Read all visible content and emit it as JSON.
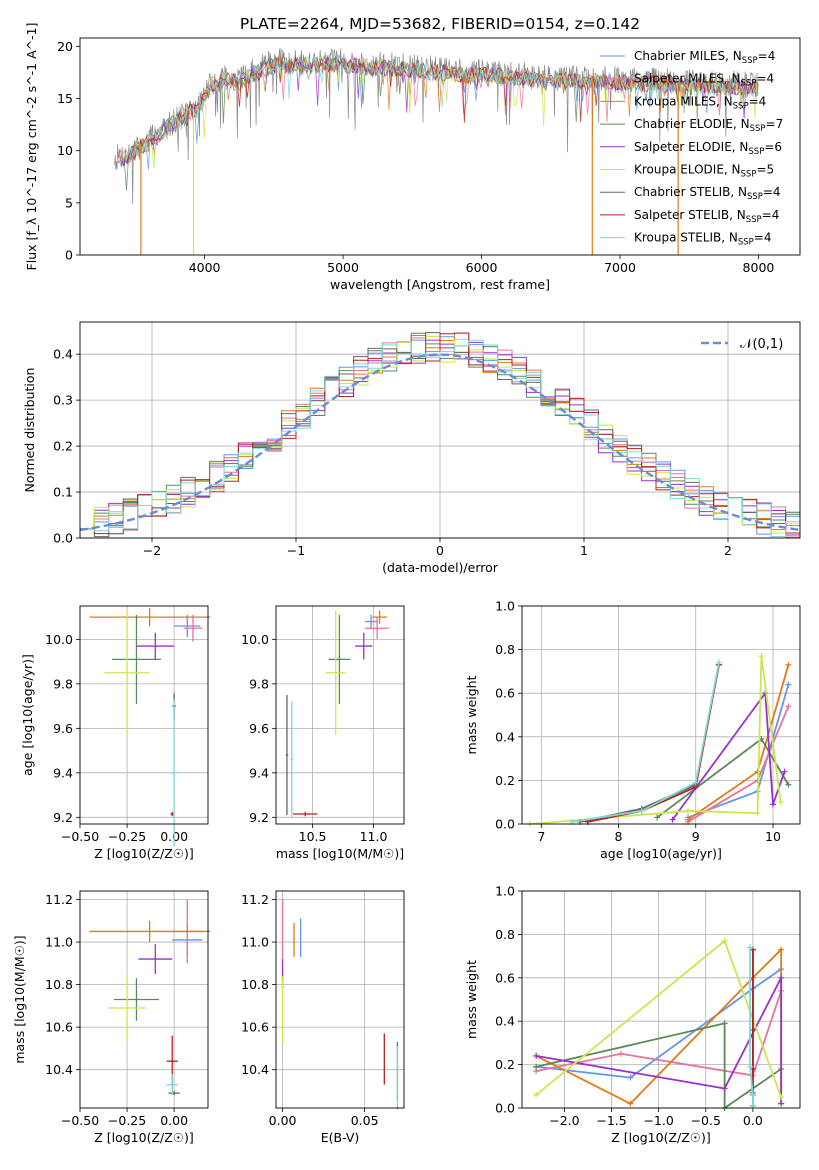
{
  "title": "PLATE=2264, MJD=53682, FIBERID=0154, z=0.142",
  "legend_entries": [
    {
      "label": "Chabrier MILES, N_SSP=4",
      "color": "#6495ed"
    },
    {
      "label": "Salpeter MILES, N_SSP=4",
      "color": "#e8749a"
    },
    {
      "label": "Kroupa MILES, N_SSP=4",
      "color": "#e07b1a"
    },
    {
      "label": "Chabrier ELODIE, N_SSP=7",
      "color": "#5a8a5a"
    },
    {
      "label": "Salpeter ELODIE, N_SSP=6",
      "color": "#9932cc"
    },
    {
      "label": "Kroupa ELODIE, N_SSP=5",
      "color": "#c8e84f"
    },
    {
      "label": "Chabrier STELIB, N_SSP=4",
      "color": "#666666"
    },
    {
      "label": "Salpeter STELIB, N_SSP=4",
      "color": "#b22222"
    },
    {
      "label": "Kroupa STELIB, N_SSP=4",
      "color": "#7fd6d6"
    }
  ],
  "chart_data": [
    {
      "type": "line",
      "panel": "spectrum",
      "xlabel": "wavelength [Angstrom, rest frame]",
      "ylabel": "Flux [f_λ 10^-17 erg cm^-2 s^-1 A^-1]",
      "xlim": [
        3100,
        8300
      ],
      "ylim": [
        0,
        20.8
      ],
      "xticks": [
        4000,
        5000,
        6000,
        7000,
        8000
      ],
      "yticks": [
        0,
        5,
        10,
        15,
        20
      ],
      "data_flux_envelope": {
        "x": [
          3350,
          3450,
          3550,
          3650,
          3750,
          3850,
          3950,
          4050,
          4150,
          4250,
          4350,
          4450,
          4550,
          4700,
          4850,
          5000,
          5200,
          5400,
          5600,
          5800,
          6000,
          6200,
          6400,
          6600,
          6800,
          7000,
          7200,
          7400,
          7600,
          7800,
          8000
        ],
        "y": [
          9.3,
          9.6,
          10.5,
          11.5,
          12.6,
          13.5,
          14.2,
          16.5,
          17.1,
          16.8,
          17.6,
          18.2,
          18.6,
          18.4,
          18.6,
          18.5,
          18.3,
          18.1,
          17.9,
          17.6,
          17.5,
          17.3,
          17.1,
          17.0,
          16.9,
          16.8,
          16.7,
          16.6,
          16.5,
          16.4,
          16.2
        ]
      },
      "model_drops": [
        {
          "series": "Kroupa MILES",
          "x": 3540
        },
        {
          "series": "Kroupa ELODIE",
          "x": 3920
        },
        {
          "series": "Kroupa MILES",
          "x": 6800
        },
        {
          "series": "Kroupa MILES",
          "x": 7420
        }
      ]
    },
    {
      "type": "line",
      "panel": "residual-histogram",
      "xlabel": "(data-model)/error",
      "ylabel": "Normed distribution",
      "xlim": [
        -2.5,
        2.5
      ],
      "ylim": [
        0,
        0.47
      ],
      "xticks": [
        -2,
        -1,
        0,
        1,
        2
      ],
      "yticks": [
        0,
        0.1,
        0.2,
        0.3,
        0.4
      ],
      "reference_label": "𝒩(0,1)",
      "reference_color": "#6a8cd8"
    },
    {
      "type": "scatter",
      "panel": "Z-vs-age",
      "xlabel": "Z [log10(Z/Z☉)]",
      "ylabel": "age [log10(age/yr)]",
      "xlim": [
        -0.5,
        0.18
      ],
      "ylim": [
        9.17,
        10.15
      ],
      "xticks": [
        -0.5,
        -0.25,
        0.0
      ],
      "yticks": [
        9.2,
        9.4,
        9.6,
        9.8,
        10.0
      ],
      "points": [
        {
          "series": "Chabrier MILES",
          "x": 0.07,
          "xerr": 0.07,
          "y": 10.06,
          "yerr": 0.05
        },
        {
          "series": "Salpeter MILES",
          "x": 0.1,
          "xerr": 0.05,
          "y": 10.05,
          "yerr": 0.06
        },
        {
          "series": "Kroupa MILES",
          "x": -0.13,
          "xerr": 0.32,
          "y": 10.1,
          "yerr": 0.04
        },
        {
          "series": "Chabrier ELODIE",
          "x": -0.2,
          "xerr": 0.13,
          "y": 9.91,
          "yerr": 0.2
        },
        {
          "series": "Salpeter ELODIE",
          "x": -0.1,
          "xerr": 0.1,
          "y": 9.97,
          "yerr": 0.06
        },
        {
          "series": "Kroupa ELODIE",
          "x": -0.25,
          "xerr": 0.12,
          "y": 9.85,
          "yerr": 0.28
        },
        {
          "series": "Chabrier STELIB",
          "x": 0.0,
          "xerr": 0.01,
          "y": 9.7,
          "yerr": 0.06
        },
        {
          "series": "Salpeter STELIB",
          "x": -0.01,
          "xerr": 0.01,
          "y": 9.215,
          "yerr": 0.01
        },
        {
          "series": "Kroupa STELIB",
          "x": 0.0,
          "xerr": 0.02,
          "y": 9.4,
          "yerr": 0.33
        }
      ]
    },
    {
      "type": "scatter",
      "panel": "mass-vs-age",
      "xlabel": "mass [log10(M/M☉)]",
      "ylabel": "",
      "xlim": [
        10.2,
        11.25
      ],
      "ylim": [
        9.17,
        10.15
      ],
      "xticks": [
        10.5,
        11.0
      ],
      "yticks": [
        9.2,
        9.4,
        9.6,
        9.8,
        10.0
      ],
      "points": [
        {
          "series": "Chabrier MILES",
          "x": 10.98,
          "xerr": 0.05,
          "y": 10.08,
          "yerr": 0.03
        },
        {
          "series": "Salpeter MILES",
          "x": 11.03,
          "xerr": 0.1,
          "y": 10.05,
          "yerr": 0.05
        },
        {
          "series": "Kroupa MILES",
          "x": 11.05,
          "xerr": 0.06,
          "y": 10.1,
          "yerr": 0.03
        },
        {
          "series": "Chabrier ELODIE",
          "x": 10.72,
          "xerr": 0.09,
          "y": 9.91,
          "yerr": 0.2
        },
        {
          "series": "Salpeter ELODIE",
          "x": 10.92,
          "xerr": 0.07,
          "y": 9.97,
          "yerr": 0.06
        },
        {
          "series": "Kroupa ELODIE",
          "x": 10.69,
          "xerr": 0.08,
          "y": 9.85,
          "yerr": 0.28
        },
        {
          "series": "Chabrier STELIB",
          "x": 10.29,
          "xerr": 0.01,
          "y": 9.48,
          "yerr": 0.27
        },
        {
          "series": "Salpeter STELIB",
          "x": 10.44,
          "xerr": 0.1,
          "y": 9.215,
          "yerr": 0.01
        },
        {
          "series": "Kroupa STELIB",
          "x": 10.33,
          "xerr": 0.01,
          "y": 9.46,
          "yerr": 0.26
        }
      ]
    },
    {
      "type": "line",
      "panel": "age-vs-weight",
      "xlabel": "age [log10(age/yr)]",
      "ylabel": "mass weight",
      "xlim": [
        6.75,
        10.35
      ],
      "ylim": [
        0,
        1.0
      ],
      "xticks": [
        7,
        8,
        9,
        10
      ],
      "yticks": [
        0.0,
        0.2,
        0.4,
        0.6,
        0.8,
        1.0
      ],
      "series": [
        {
          "name": "Chabrier MILES",
          "x": [
            8.9,
            9.8,
            10.2
          ],
          "y": [
            0.03,
            0.15,
            0.64
          ]
        },
        {
          "name": "Salpeter MILES",
          "x": [
            8.9,
            9.8,
            10.2
          ],
          "y": [
            0.01,
            0.2,
            0.54
          ]
        },
        {
          "name": "Kroupa MILES",
          "x": [
            8.9,
            9.8,
            10.2
          ],
          "y": [
            0.02,
            0.24,
            0.73
          ]
        },
        {
          "name": "Chabrier ELODIE",
          "x": [
            8.5,
            9.85,
            10.2
          ],
          "y": [
            0.03,
            0.39,
            0.18
          ]
        },
        {
          "name": "Salpeter ELODIE",
          "x": [
            8.7,
            9.9,
            10.0,
            10.15
          ],
          "y": [
            0.02,
            0.6,
            0.09,
            0.24
          ]
        },
        {
          "name": "Kroupa ELODIE",
          "x": [
            6.85,
            8.9,
            9.8,
            9.85,
            10.1
          ],
          "y": [
            0.0,
            0.06,
            0.05,
            0.77,
            0.1
          ]
        },
        {
          "name": "Chabrier STELIB",
          "x": [
            7.5,
            8.3,
            9.0,
            9.3
          ],
          "y": [
            0.01,
            0.07,
            0.18,
            0.73
          ]
        },
        {
          "name": "Salpeter STELIB",
          "x": [
            7.6,
            8.3,
            9.0,
            9.3
          ],
          "y": [
            0.01,
            0.06,
            0.17,
            0.73
          ]
        },
        {
          "name": "Kroupa STELIB",
          "x": [
            7.4,
            8.3,
            9.0,
            9.3
          ],
          "y": [
            0.01,
            0.06,
            0.19,
            0.74
          ]
        }
      ]
    },
    {
      "type": "scatter",
      "panel": "Z-vs-mass",
      "xlabel": "Z [log10(Z/Z☉)]",
      "ylabel": "mass [log10(M/M☉)]",
      "xlim": [
        -0.5,
        0.18
      ],
      "ylim": [
        10.22,
        11.24
      ],
      "xticks": [
        -0.5,
        -0.25,
        0.0
      ],
      "yticks": [
        10.4,
        10.6,
        10.8,
        11.0,
        11.2
      ],
      "points": [
        {
          "series": "Chabrier MILES",
          "x": 0.07,
          "xerr": 0.08,
          "y": 11.01,
          "yerr": 0.08
        },
        {
          "series": "Salpeter MILES",
          "x": 0.07,
          "xerr": 0.08,
          "y": 11.05,
          "yerr": 0.15
        },
        {
          "series": "Kroupa MILES",
          "x": -0.13,
          "xerr": 0.32,
          "y": 11.05,
          "yerr": 0.05
        },
        {
          "series": "Chabrier ELODIE",
          "x": -0.2,
          "xerr": 0.12,
          "y": 10.73,
          "yerr": 0.1
        },
        {
          "series": "Salpeter ELODIE",
          "x": -0.1,
          "xerr": 0.09,
          "y": 10.92,
          "yerr": 0.07
        },
        {
          "series": "Kroupa ELODIE",
          "x": -0.25,
          "xerr": 0.1,
          "y": 10.69,
          "yerr": 0.16
        },
        {
          "series": "Chabrier STELIB",
          "x": 0.0,
          "xerr": 0.03,
          "y": 10.29,
          "yerr": 0.01
        },
        {
          "series": "Salpeter STELIB",
          "x": -0.01,
          "xerr": 0.03,
          "y": 10.44,
          "yerr": 0.12
        },
        {
          "series": "Kroupa STELIB",
          "x": -0.01,
          "xerr": 0.03,
          "y": 10.33,
          "yerr": 0.05
        }
      ]
    },
    {
      "type": "scatter",
      "panel": "EBV-vs-mass",
      "xlabel": "E(B-V)",
      "ylabel": "",
      "xlim": [
        -0.004,
        0.074
      ],
      "ylim": [
        10.22,
        11.24
      ],
      "xticks": [
        0.0,
        0.05
      ],
      "yticks": [
        10.4,
        10.6,
        10.8,
        11.0,
        11.2
      ],
      "points": [
        {
          "series": "Chabrier MILES",
          "x": 0.011,
          "y": 11.02,
          "yerr": 0.09
        },
        {
          "series": "Salpeter MILES",
          "x": 0.0,
          "y": 11.05,
          "yerr": 0.15
        },
        {
          "series": "Kroupa MILES",
          "x": 0.007,
          "y": 11.01,
          "yerr": 0.08
        },
        {
          "series": "Chabrier ELODIE",
          "x": 0.0,
          "y": 10.81,
          "yerr": 0.03
        },
        {
          "series": "Salpeter ELODIE",
          "x": 0.0,
          "y": 10.87,
          "yerr": 0.05
        },
        {
          "series": "Kroupa ELODIE",
          "x": 0.0,
          "y": 10.68,
          "yerr": 0.16
        },
        {
          "series": "Chabrier STELIB",
          "x": 0.07,
          "y": 10.39,
          "yerr": 0.14
        },
        {
          "series": "Salpeter STELIB",
          "x": 0.062,
          "y": 10.45,
          "yerr": 0.12
        },
        {
          "series": "Kroupa STELIB",
          "x": 0.07,
          "y": 10.36,
          "yerr": 0.15
        }
      ]
    },
    {
      "type": "line",
      "panel": "Z-vs-weight",
      "xlabel": "Z [log10(Z/Z☉)]",
      "ylabel": "mass weight",
      "xlim": [
        -2.45,
        0.5
      ],
      "ylim": [
        0,
        1.0
      ],
      "xticks": [
        -2.0,
        -1.5,
        -1.0,
        -0.5,
        0.0
      ],
      "yticks": [
        0.0,
        0.2,
        0.4,
        0.6,
        0.8,
        1.0
      ],
      "series": [
        {
          "name": "Chabrier MILES",
          "x": [
            -2.3,
            -1.3,
            0.0,
            0.3
          ],
          "y": [
            0.19,
            0.14,
            0.55,
            0.64
          ]
        },
        {
          "name": "Salpeter MILES",
          "x": [
            -2.3,
            -1.4,
            0.0,
            0.3
          ],
          "y": [
            0.17,
            0.25,
            0.15,
            0.54
          ]
        },
        {
          "name": "Kroupa MILES",
          "x": [
            -2.3,
            -1.3,
            0.0,
            0.3,
            0.3
          ],
          "y": [
            0.24,
            0.02,
            0.6,
            0.73,
            0.02
          ]
        },
        {
          "name": "Chabrier ELODIE",
          "x": [
            -2.3,
            -0.3,
            -0.3,
            0.3
          ],
          "y": [
            0.19,
            0.39,
            0.0,
            0.18
          ]
        },
        {
          "name": "Salpeter ELODIE",
          "x": [
            -2.3,
            -0.3,
            0.3,
            0.3
          ],
          "y": [
            0.24,
            0.09,
            0.6,
            0.02
          ]
        },
        {
          "name": "Kroupa ELODIE",
          "x": [
            -2.3,
            -0.3,
            0.3
          ],
          "y": [
            0.06,
            0.77,
            0.05
          ]
        },
        {
          "name": "Chabrier STELIB",
          "x": [
            0.0,
            0.0,
            0.0,
            0.0
          ],
          "y": [
            0.73,
            0.36,
            0.18,
            0.07
          ]
        },
        {
          "name": "Salpeter STELIB",
          "x": [
            0.0,
            0.0,
            0.0,
            0.0
          ],
          "y": [
            0.73,
            0.18,
            0.06,
            0.01
          ]
        },
        {
          "name": "Kroupa STELIB",
          "x": [
            -0.03,
            -0.03,
            0.0,
            0.0
          ],
          "y": [
            0.74,
            0.19,
            0.06,
            0.01
          ]
        }
      ]
    }
  ]
}
